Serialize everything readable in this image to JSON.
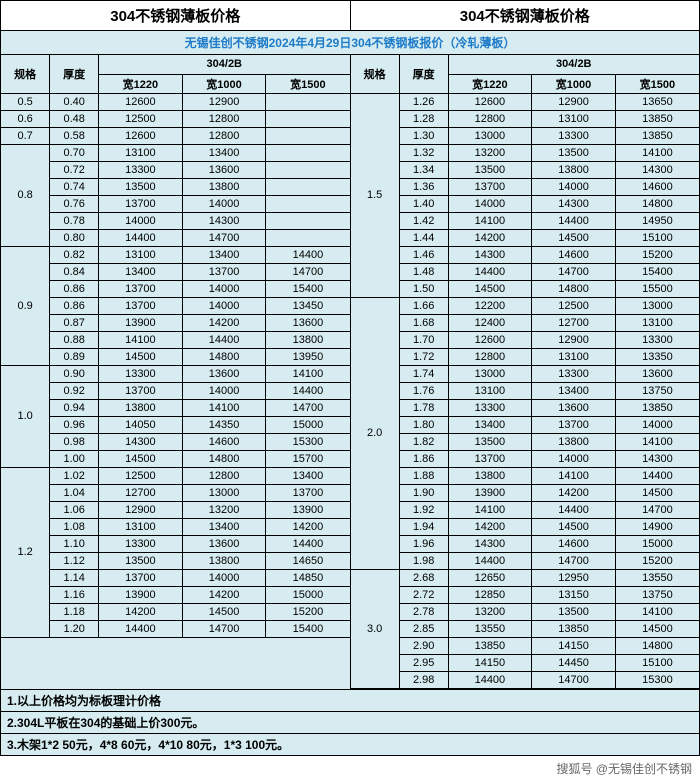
{
  "title": "304不锈钢薄板价格",
  "subtitle": "无锡佳创不锈钢2024年4月29日304不锈钢板报价（冷轧薄板）",
  "col_headers": {
    "spec": "规格",
    "thick": "厚度",
    "grade": "304/2B",
    "w1220": "宽1220",
    "w1000": "宽1000",
    "w1500": "宽1500"
  },
  "left_groups": [
    {
      "spec": "0.5",
      "rows": [
        [
          "0.40",
          "12600",
          "12900",
          ""
        ]
      ]
    },
    {
      "spec": "0.6",
      "rows": [
        [
          "0.48",
          "12500",
          "12800",
          ""
        ]
      ]
    },
    {
      "spec": "0.7",
      "rows": [
        [
          "0.58",
          "12600",
          "12800",
          ""
        ]
      ]
    },
    {
      "spec": "0.8",
      "rows": [
        [
          "0.70",
          "13100",
          "13400",
          ""
        ],
        [
          "0.72",
          "13300",
          "13600",
          ""
        ],
        [
          "0.74",
          "13500",
          "13800",
          ""
        ],
        [
          "0.76",
          "13700",
          "14000",
          ""
        ],
        [
          "0.78",
          "14000",
          "14300",
          ""
        ],
        [
          "0.80",
          "14400",
          "14700",
          ""
        ]
      ]
    },
    {
      "spec": "0.9",
      "rows": [
        [
          "0.82",
          "13100",
          "13400",
          "14400"
        ],
        [
          "0.84",
          "13400",
          "13700",
          "14700"
        ],
        [
          "0.86",
          "13700",
          "14000",
          "15400"
        ],
        [
          "0.86",
          "13700",
          "14000",
          "13450"
        ],
        [
          "0.87",
          "13900",
          "14200",
          "13600"
        ],
        [
          "0.88",
          "14100",
          "14400",
          "13800"
        ],
        [
          "0.89",
          "14500",
          "14800",
          "13950"
        ]
      ]
    },
    {
      "spec": "1.0",
      "rows": [
        [
          "0.90",
          "13300",
          "13600",
          "14100"
        ],
        [
          "0.92",
          "13700",
          "14000",
          "14400"
        ],
        [
          "0.94",
          "13800",
          "14100",
          "14700"
        ],
        [
          "0.96",
          "14050",
          "14350",
          "15000"
        ],
        [
          "0.98",
          "14300",
          "14600",
          "15300"
        ],
        [
          "1.00",
          "14500",
          "14800",
          "15700"
        ]
      ]
    },
    {
      "spec": "1.2",
      "rows": [
        [
          "1.02",
          "12500",
          "12800",
          "13400"
        ],
        [
          "1.04",
          "12700",
          "13000",
          "13700"
        ],
        [
          "1.06",
          "12900",
          "13200",
          "13900"
        ],
        [
          "1.08",
          "13100",
          "13400",
          "14200"
        ],
        [
          "1.10",
          "13300",
          "13600",
          "14400"
        ],
        [
          "1.12",
          "13500",
          "13800",
          "14650"
        ],
        [
          "1.14",
          "13700",
          "14000",
          "14850"
        ],
        [
          "1.16",
          "13900",
          "14200",
          "15000"
        ],
        [
          "1.18",
          "14200",
          "14500",
          "15200"
        ],
        [
          "1.20",
          "14400",
          "14700",
          "15400"
        ]
      ]
    }
  ],
  "right_groups": [
    {
      "spec": "1.5",
      "rows": [
        [
          "1.26",
          "12600",
          "12900",
          "13650"
        ],
        [
          "1.28",
          "12800",
          "13100",
          "13850"
        ],
        [
          "1.30",
          "13000",
          "13300",
          "13850"
        ],
        [
          "1.32",
          "13200",
          "13500",
          "14100"
        ],
        [
          "1.34",
          "13500",
          "13800",
          "14300"
        ],
        [
          "1.36",
          "13700",
          "14000",
          "14600"
        ],
        [
          "1.40",
          "14000",
          "14300",
          "14800"
        ],
        [
          "1.42",
          "14100",
          "14400",
          "14950"
        ],
        [
          "1.44",
          "14200",
          "14500",
          "15100"
        ],
        [
          "1.46",
          "14300",
          "14600",
          "15200"
        ],
        [
          "1.48",
          "14400",
          "14700",
          "15400"
        ],
        [
          "1.50",
          "14500",
          "14800",
          "15500"
        ]
      ]
    },
    {
      "spec": "2.0",
      "rows": [
        [
          "1.66",
          "12200",
          "12500",
          "13000"
        ],
        [
          "1.68",
          "12400",
          "12700",
          "13100"
        ],
        [
          "1.70",
          "12600",
          "12900",
          "13300"
        ],
        [
          "1.72",
          "12800",
          "13100",
          "13350"
        ],
        [
          "1.74",
          "13000",
          "13300",
          "13600"
        ],
        [
          "1.76",
          "13100",
          "13400",
          "13750"
        ],
        [
          "1.78",
          "13300",
          "13600",
          "13850"
        ],
        [
          "1.80",
          "13400",
          "13700",
          "14000"
        ],
        [
          "1.82",
          "13500",
          "13800",
          "14100"
        ],
        [
          "1.86",
          "13700",
          "14000",
          "14300"
        ],
        [
          "1.88",
          "13800",
          "14100",
          "14400"
        ],
        [
          "1.90",
          "13900",
          "14200",
          "14500"
        ],
        [
          "1.92",
          "14100",
          "14400",
          "14700"
        ],
        [
          "1.94",
          "14200",
          "14500",
          "14900"
        ],
        [
          "1.96",
          "14300",
          "14600",
          "15000"
        ],
        [
          "1.98",
          "14400",
          "14700",
          "15200"
        ]
      ]
    },
    {
      "spec": "3.0",
      "rows": [
        [
          "2.68",
          "12650",
          "12950",
          "13550"
        ],
        [
          "2.72",
          "12850",
          "13150",
          "13750"
        ],
        [
          "2.78",
          "13200",
          "13500",
          "14100"
        ],
        [
          "2.85",
          "13550",
          "13850",
          "14500"
        ],
        [
          "2.90",
          "13850",
          "14150",
          "14800"
        ],
        [
          "2.95",
          "14150",
          "14450",
          "15100"
        ],
        [
          "2.98",
          "14400",
          "14700",
          "15300"
        ]
      ]
    }
  ],
  "notes": [
    "1.以上价格均为标板理计价格",
    "2.304L平板在304的基础上价300元。",
    "3.木架1*2 50元，4*8 60元，4*10 80元，1*3 100元。"
  ],
  "footer": "搜狐号 @无锡佳创不锈钢"
}
